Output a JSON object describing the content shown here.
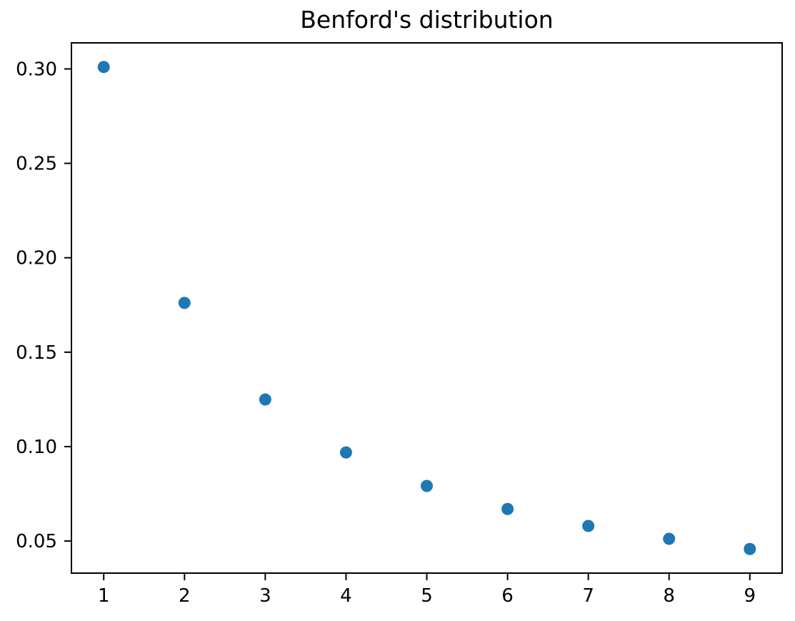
{
  "figure": {
    "background": "#ffffff"
  },
  "chart_data": {
    "type": "scatter",
    "title": "Benford's distribution",
    "xlabel": "",
    "ylabel": "",
    "x": [
      1,
      2,
      3,
      4,
      5,
      6,
      7,
      8,
      9
    ],
    "y": [
      0.30103,
      0.17609,
      0.12494,
      0.09691,
      0.07918,
      0.06695,
      0.05799,
      0.05115,
      0.04576
    ],
    "xlim": [
      0.6,
      9.4
    ],
    "ylim": [
      0.033,
      0.3138
    ],
    "x_ticks": [
      1,
      2,
      3,
      4,
      5,
      6,
      7,
      8,
      9
    ],
    "x_tick_labels": [
      "1",
      "2",
      "3",
      "4",
      "5",
      "6",
      "7",
      "8",
      "9"
    ],
    "y_ticks": [
      0.05,
      0.1,
      0.15,
      0.2,
      0.25,
      0.3
    ],
    "y_tick_labels": [
      "0.05",
      "0.10",
      "0.15",
      "0.20",
      "0.25",
      "0.30"
    ],
    "grid": false,
    "legend": false,
    "marker_color": "#1f77b4",
    "marker_radius": 8.5,
    "axis_color": "#000000",
    "tick_label_color": "#000000",
    "title_color": "#000000"
  }
}
